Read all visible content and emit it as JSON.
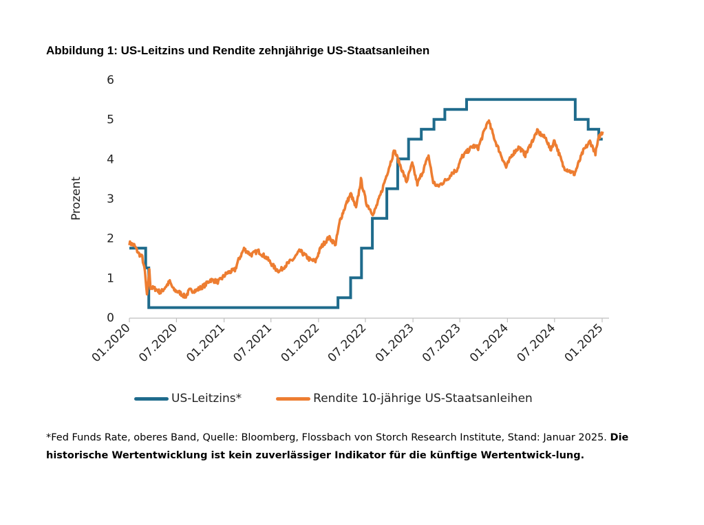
{
  "title": "Abbildung 1: US-Leitzins und Rendite zehnjährige US-Staatsanleihen",
  "footnote": {
    "source": "*Fed Funds Rate, oberes Band, Quelle: Bloomberg, Flossbach von Storch Research Institute, Stand: Januar 2025.",
    "disclaimer": "Die historische Wertentwicklung ist kein zuverlässiger Indikator für die künftige Wertentwick-lung."
  },
  "colors": {
    "leitzins": "#1f6b8c",
    "rendite": "#ed7d31"
  },
  "chart_data": {
    "type": "line",
    "ylabel": "Prozent",
    "ylim": [
      0,
      6
    ],
    "yticks": [
      "0",
      "1",
      "2",
      "3",
      "4",
      "5",
      "6"
    ],
    "xticks": [
      "01.2020",
      "07.2020",
      "01.2021",
      "07.2021",
      "01.2022",
      "07.2022",
      "01.2023",
      "07.2023",
      "01.2024",
      "07.2024",
      "01.2025"
    ],
    "legend_position": "bottom",
    "series": [
      {
        "name": "US-Leitzins*",
        "style": "step",
        "points": [
          [
            "2020-01-01",
            1.75
          ],
          [
            "2020-03-04",
            1.25
          ],
          [
            "2020-03-16",
            0.25
          ],
          [
            "2022-03-17",
            0.5
          ],
          [
            "2022-05-05",
            1.0
          ],
          [
            "2022-06-16",
            1.75
          ],
          [
            "2022-07-28",
            2.5
          ],
          [
            "2022-09-22",
            3.25
          ],
          [
            "2022-11-03",
            4.0
          ],
          [
            "2022-12-15",
            4.5
          ],
          [
            "2023-02-02",
            4.75
          ],
          [
            "2023-03-23",
            5.0
          ],
          [
            "2023-05-04",
            5.25
          ],
          [
            "2023-07-27",
            5.5
          ],
          [
            "2024-09-19",
            5.0
          ],
          [
            "2024-11-08",
            4.75
          ],
          [
            "2024-12-19",
            4.5
          ],
          [
            "2025-01-03",
            4.5
          ]
        ]
      },
      {
        "name": "Rendite 10-jährige US-Staatsanleihen",
        "style": "line",
        "points": [
          [
            "2020-01-01",
            1.88
          ],
          [
            "2020-01-20",
            1.82
          ],
          [
            "2020-02-05",
            1.62
          ],
          [
            "2020-02-20",
            1.52
          ],
          [
            "2020-03-01",
            1.15
          ],
          [
            "2020-03-09",
            0.54
          ],
          [
            "2020-03-18",
            1.18
          ],
          [
            "2020-03-23",
            0.76
          ],
          [
            "2020-04-10",
            0.72
          ],
          [
            "2020-05-01",
            0.63
          ],
          [
            "2020-06-05",
            0.9
          ],
          [
            "2020-06-20",
            0.7
          ],
          [
            "2020-07-15",
            0.62
          ],
          [
            "2020-08-04",
            0.52
          ],
          [
            "2020-08-20",
            0.68
          ],
          [
            "2020-09-15",
            0.68
          ],
          [
            "2020-10-20",
            0.82
          ],
          [
            "2020-11-09",
            0.95
          ],
          [
            "2020-12-10",
            0.9
          ],
          [
            "2021-01-12",
            1.12
          ],
          [
            "2021-02-12",
            1.2
          ],
          [
            "2021-02-26",
            1.45
          ],
          [
            "2021-03-19",
            1.73
          ],
          [
            "2021-04-15",
            1.58
          ],
          [
            "2021-05-12",
            1.68
          ],
          [
            "2021-06-15",
            1.5
          ],
          [
            "2021-07-20",
            1.22
          ],
          [
            "2021-08-04",
            1.17
          ],
          [
            "2021-08-20",
            1.28
          ],
          [
            "2021-09-27",
            1.48
          ],
          [
            "2021-10-21",
            1.68
          ],
          [
            "2021-11-30",
            1.45
          ],
          [
            "2021-12-20",
            1.42
          ],
          [
            "2022-01-10",
            1.77
          ],
          [
            "2022-02-10",
            2.02
          ],
          [
            "2022-03-08",
            1.85
          ],
          [
            "2022-03-25",
            2.45
          ],
          [
            "2022-04-20",
            2.9
          ],
          [
            "2022-05-06",
            3.12
          ],
          [
            "2022-05-26",
            2.75
          ],
          [
            "2022-06-14",
            3.47
          ],
          [
            "2022-07-05",
            2.88
          ],
          [
            "2022-08-01",
            2.6
          ],
          [
            "2022-08-29",
            3.1
          ],
          [
            "2022-09-20",
            3.57
          ],
          [
            "2022-10-21",
            4.22
          ],
          [
            "2022-11-15",
            3.8
          ],
          [
            "2022-12-07",
            3.42
          ],
          [
            "2022-12-29",
            3.88
          ],
          [
            "2023-01-18",
            3.37
          ],
          [
            "2023-02-10",
            3.72
          ],
          [
            "2023-03-02",
            4.08
          ],
          [
            "2023-03-20",
            3.42
          ],
          [
            "2023-04-06",
            3.3
          ],
          [
            "2023-05-15",
            3.5
          ],
          [
            "2023-05-31",
            3.64
          ],
          [
            "2023-06-20",
            3.73
          ],
          [
            "2023-07-10",
            4.06
          ],
          [
            "2023-08-21",
            4.33
          ],
          [
            "2023-09-10",
            4.28
          ],
          [
            "2023-10-19",
            4.98
          ],
          [
            "2023-11-15",
            4.45
          ],
          [
            "2023-12-27",
            3.79
          ],
          [
            "2024-01-20",
            4.12
          ],
          [
            "2024-02-15",
            4.3
          ],
          [
            "2024-03-10",
            4.1
          ],
          [
            "2024-04-25",
            4.7
          ],
          [
            "2024-05-31",
            4.5
          ],
          [
            "2024-06-15",
            4.22
          ],
          [
            "2024-07-01",
            4.47
          ],
          [
            "2024-08-05",
            3.79
          ],
          [
            "2024-09-16",
            3.62
          ],
          [
            "2024-10-20",
            4.2
          ],
          [
            "2024-11-15",
            4.44
          ],
          [
            "2024-12-06",
            4.15
          ],
          [
            "2024-12-20",
            4.55
          ],
          [
            "2025-01-03",
            4.69
          ]
        ]
      }
    ]
  }
}
